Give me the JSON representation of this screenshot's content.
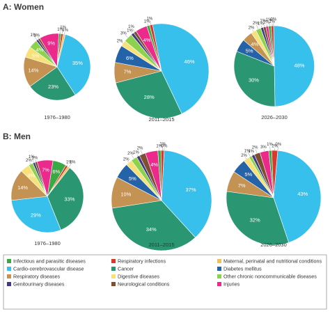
{
  "colors": {
    "infectious": "#3aa845",
    "respiratory_inf": "#d8392b",
    "maternal": "#f2bf5d",
    "cardio": "#38c0ec",
    "cancer": "#2b9672",
    "diabetes": "#2463a7",
    "resp_disease": "#c49252",
    "digestive": "#f7e27a",
    "other_ncd": "#8cd24e",
    "genito": "#413982",
    "neuro": "#7e5031",
    "injuries": "#eb2a8c"
  },
  "legend": [
    {
      "key": "infectious",
      "label": "Infectious and parasitic diseases"
    },
    {
      "key": "respiratory_inf",
      "label": "Respiratory infections"
    },
    {
      "key": "maternal",
      "label": "Maternal, perinatal and nutritional conditions"
    },
    {
      "key": "cardio",
      "label": "Cardio-cerebrovascular disease"
    },
    {
      "key": "cancer",
      "label": "Cancer"
    },
    {
      "key": "diabetes",
      "label": "Diabetes mellitus"
    },
    {
      "key": "resp_disease",
      "label": "Respiratory diseases"
    },
    {
      "key": "digestive",
      "label": "Digestive diseases"
    },
    {
      "key": "other_ncd",
      "label": "Other chronic noncommunicable diseases"
    },
    {
      "key": "genito",
      "label": "Genitourinary diseases"
    },
    {
      "key": "neuro",
      "label": "Neurological conditions"
    },
    {
      "key": "injuries",
      "label": "Injuries"
    }
  ],
  "panels": [
    {
      "title": "A: Women"
    },
    {
      "title": "B: Men"
    }
  ],
  "chart_data": [
    {
      "type": "pie",
      "panel": "A: Women",
      "period": "1976–1980",
      "slices": [
        {
          "key": "infectious",
          "label": "Infectious and parasitic diseases",
          "value": 1,
          "text": "1%"
        },
        {
          "key": "respiratory_inf",
          "label": "Respiratory infections",
          "value": 1,
          "text": "1%"
        },
        {
          "key": "maternal",
          "label": "Maternal, perinatal and nutritional conditions",
          "value": 1,
          "text": "1%"
        },
        {
          "key": "cardio",
          "label": "Cardio-cerebrovascular disease",
          "value": 35,
          "text": "35%"
        },
        {
          "key": "cancer",
          "label": "Cancer",
          "value": 23,
          "text": "23%"
        },
        {
          "key": "resp_disease",
          "label": "Respiratory diseases",
          "value": 14,
          "text": "14%"
        },
        {
          "key": "digestive",
          "label": "Digestive diseases",
          "value": 5,
          "text": "5%"
        },
        {
          "key": "other_ncd",
          "label": "Other chronic noncommunicable diseases",
          "value": 4,
          "text": "4%"
        },
        {
          "key": "genito",
          "label": "Genitourinary diseases",
          "value": 1,
          "text": "1%"
        },
        {
          "key": "neuro",
          "label": "Neurological conditions",
          "value": 1,
          "text": "1%"
        },
        {
          "key": "injuries",
          "label": "Injuries",
          "value": 9,
          "text": "9%"
        }
      ]
    },
    {
      "type": "pie",
      "panel": "A: Women",
      "period": "2011–2015",
      "slices": [
        {
          "key": "cardio",
          "label": "Cardio-cerebrovascular disease",
          "value": 46,
          "text": "46%"
        },
        {
          "key": "cancer",
          "label": "Cancer",
          "value": 28,
          "text": "28%"
        },
        {
          "key": "resp_disease",
          "label": "Respiratory diseases",
          "value": 7,
          "text": "7%"
        },
        {
          "key": "diabetes",
          "label": "Diabetes mellitus",
          "value": 6,
          "text": "6%"
        },
        {
          "key": "digestive",
          "label": "Digestive diseases",
          "value": 2,
          "text": "2%"
        },
        {
          "key": "other_ncd",
          "label": "Other chronic noncommunicable diseases",
          "value": 3,
          "text": "3%"
        },
        {
          "key": "genito",
          "label": "Genitourinary diseases",
          "value": 1,
          "text": "1%"
        },
        {
          "key": "neuro",
          "label": "Neurological conditions",
          "value": 1,
          "text": "1%"
        },
        {
          "key": "injuries",
          "label": "Injuries",
          "value": 4,
          "text": "4%"
        },
        {
          "key": "infectious",
          "label": "Infectious and parasitic diseases",
          "value": 1,
          "text": "1%"
        },
        {
          "key": "respiratory_inf",
          "label": "Respiratory infections",
          "value": 1,
          "text": "1%"
        }
      ]
    },
    {
      "type": "pie",
      "panel": "A: Women",
      "period": "2026–2030",
      "slices": [
        {
          "key": "cardio",
          "label": "Cardio-cerebrovascular disease",
          "value": 48,
          "text": "48%"
        },
        {
          "key": "cancer",
          "label": "Cancer",
          "value": 30,
          "text": "30%"
        },
        {
          "key": "diabetes",
          "label": "Diabetes mellitus",
          "value": 5,
          "text": "5%"
        },
        {
          "key": "resp_disease",
          "label": "Respiratory diseases",
          "value": 4,
          "text": "4%"
        },
        {
          "key": "digestive",
          "label": "Digestive diseases",
          "value": 2,
          "text": "2%"
        },
        {
          "key": "other_ncd",
          "label": "Other chronic noncommunicable diseases",
          "value": 2,
          "text": "2%"
        },
        {
          "key": "genito",
          "label": "Genitourinary diseases",
          "value": 1,
          "text": "1%"
        },
        {
          "key": "neuro",
          "label": "Neurological conditions",
          "value": 1,
          "text": "1%"
        },
        {
          "key": "injuries",
          "label": "Injuries",
          "value": 1,
          "text": "1%"
        },
        {
          "key": "infectious",
          "label": "Infectious and parasitic diseases",
          "value": 1,
          "text": "1%"
        },
        {
          "key": "respiratory_inf",
          "label": "Respiratory infections",
          "value": 1,
          "text": "1%"
        },
        {
          "key": "maternal",
          "label": "Maternal, perinatal and nutritional conditions",
          "value": 0,
          "text": "0%"
        }
      ]
    },
    {
      "type": "pie",
      "panel": "B: Men",
      "period": "1976–1980",
      "slices": [
        {
          "key": "infectious",
          "label": "Infectious and parasitic diseases",
          "value": 6,
          "text": "6%"
        },
        {
          "key": "respiratory_inf",
          "label": "Respiratory infections",
          "value": 1,
          "text": "1%"
        },
        {
          "key": "maternal",
          "label": "Maternal, perinatal and nutritional conditions",
          "value": 1,
          "text": "1%"
        },
        {
          "key": "cancer",
          "label": "Cancer",
          "value": 33,
          "text": "33%"
        },
        {
          "key": "cardio",
          "label": "Cardio-cerebrovascular disease",
          "value": 29,
          "text": "29%"
        },
        {
          "key": "resp_disease",
          "label": "Respiratory diseases",
          "value": 14,
          "text": "14%"
        },
        {
          "key": "digestive",
          "label": "Digestive diseases",
          "value": 4,
          "text": "4%"
        },
        {
          "key": "other_ncd",
          "label": "Other chronic noncommunicable diseases",
          "value": 2,
          "text": "2%"
        },
        {
          "key": "genito",
          "label": "Genitourinary diseases",
          "value": 1,
          "text": "1%"
        },
        {
          "key": "neuro",
          "label": "Neurological conditions",
          "value": 1,
          "text": "1%"
        },
        {
          "key": "injuries",
          "label": "Injuries",
          "value": 7,
          "text": "7%"
        }
      ]
    },
    {
      "type": "pie",
      "panel": "B: Men",
      "period": "2011–2015",
      "slices": [
        {
          "key": "cardio",
          "label": "Cardio-cerebrovascular disease",
          "value": 37,
          "text": "37%"
        },
        {
          "key": "cancer",
          "label": "Cancer",
          "value": 34,
          "text": "34%"
        },
        {
          "key": "resp_disease",
          "label": "Respiratory diseases",
          "value": 10,
          "text": "10%"
        },
        {
          "key": "diabetes",
          "label": "Diabetes mellitus",
          "value": 5,
          "text": "5%"
        },
        {
          "key": "digestive",
          "label": "Digestive diseases",
          "value": 2,
          "text": "2%"
        },
        {
          "key": "other_ncd",
          "label": "Other chronic noncommunicable diseases",
          "value": 2,
          "text": "2%"
        },
        {
          "key": "genito",
          "label": "Genitourinary diseases",
          "value": 1,
          "text": "1%"
        },
        {
          "key": "neuro",
          "label": "Neurological conditions",
          "value": 2,
          "text": "2%"
        },
        {
          "key": "injuries",
          "label": "Injuries",
          "value": 4,
          "text": "4%"
        },
        {
          "key": "infectious",
          "label": "Infectious and parasitic diseases",
          "value": 1,
          "text": "1%"
        },
        {
          "key": "respiratory_inf",
          "label": "Respiratory infections",
          "value": 1,
          "text": "1%"
        },
        {
          "key": "maternal",
          "label": "Maternal, perinatal and nutritional conditions",
          "value": 0,
          "text": "0%"
        }
      ]
    },
    {
      "type": "pie",
      "panel": "B: Men",
      "period": "2026–2030",
      "slices": [
        {
          "key": "cardio",
          "label": "Cardio-cerebrovascular disease",
          "value": 43,
          "text": "43%"
        },
        {
          "key": "cancer",
          "label": "Cancer",
          "value": 32,
          "text": "32%"
        },
        {
          "key": "resp_disease",
          "label": "Respiratory diseases",
          "value": 7,
          "text": "7%"
        },
        {
          "key": "diabetes",
          "label": "Diabetes mellitus",
          "value": 5,
          "text": "5%"
        },
        {
          "key": "digestive",
          "label": "Digestive diseases",
          "value": 2,
          "text": "2%"
        },
        {
          "key": "other_ncd",
          "label": "Other chronic noncommunicable diseases",
          "value": 1,
          "text": "1%"
        },
        {
          "key": "genito",
          "label": "Genitourinary diseases",
          "value": 1,
          "text": "1%"
        },
        {
          "key": "neuro",
          "label": "Neurological conditions",
          "value": 2,
          "text": "2%"
        },
        {
          "key": "injuries",
          "label": "Injuries",
          "value": 3,
          "text": "3%"
        },
        {
          "key": "infectious",
          "label": "Infectious and parasitic diseases",
          "value": 1,
          "text": "1%"
        },
        {
          "key": "respiratory_inf",
          "label": "Respiratory infections",
          "value": 2,
          "text": "2%"
        },
        {
          "key": "maternal",
          "label": "Maternal, perinatal and nutritional conditions",
          "value": 0,
          "text": "0%"
        }
      ]
    }
  ]
}
